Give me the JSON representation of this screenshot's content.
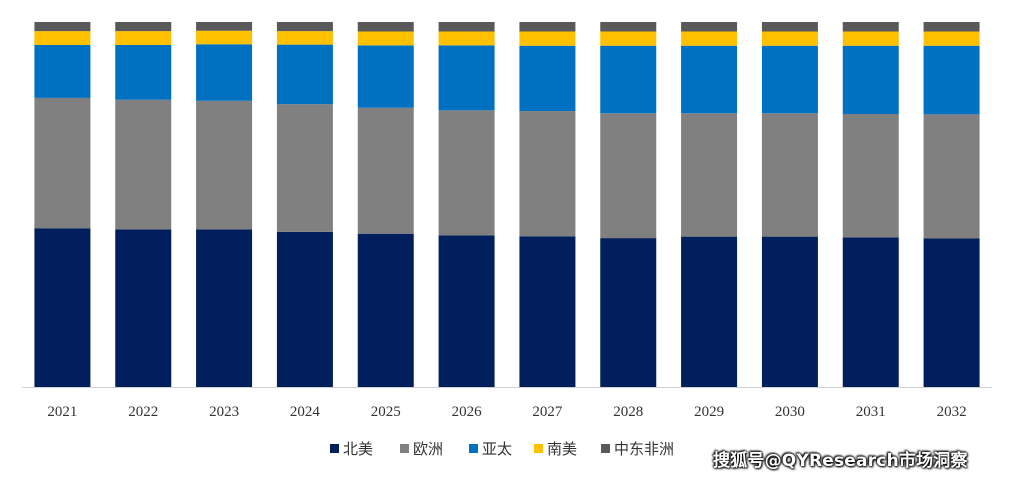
{
  "chart_data": {
    "type": "bar",
    "stacked": true,
    "normalized": true,
    "categories": [
      "2021",
      "2022",
      "2023",
      "2024",
      "2025",
      "2026",
      "2027",
      "2028",
      "2029",
      "2030",
      "2031",
      "2032"
    ],
    "series": [
      {
        "name": "北美",
        "color": "#001f5c",
        "values": [
          43.5,
          43.2,
          43.2,
          42.5,
          42.0,
          41.5,
          41.3,
          40.8,
          41.2,
          41.2,
          41.0,
          40.7
        ]
      },
      {
        "name": "欧洲",
        "color": "#808080",
        "values": [
          35.7,
          35.5,
          35.2,
          35.0,
          34.5,
          34.3,
          34.3,
          34.2,
          33.8,
          33.8,
          33.8,
          34.0
        ]
      },
      {
        "name": "亚太",
        "color": "#0070c0",
        "values": [
          14.5,
          15.0,
          15.5,
          16.3,
          17.1,
          17.8,
          17.9,
          18.5,
          18.5,
          18.5,
          18.7,
          18.8
        ]
      },
      {
        "name": "南美",
        "color": "#ffc000",
        "values": [
          3.8,
          3.8,
          3.7,
          3.7,
          3.8,
          3.8,
          3.9,
          3.9,
          3.9,
          3.9,
          3.9,
          3.9
        ]
      },
      {
        "name": "中东非洲",
        "color": "#595959",
        "values": [
          2.5,
          2.5,
          2.4,
          2.5,
          2.6,
          2.6,
          2.6,
          2.6,
          2.6,
          2.6,
          2.6,
          2.6
        ]
      }
    ],
    "ylim": [
      0,
      100
    ],
    "grid": false,
    "legend_position": "bottom"
  },
  "watermark": "搜狐号@QYResearch市场洞察"
}
